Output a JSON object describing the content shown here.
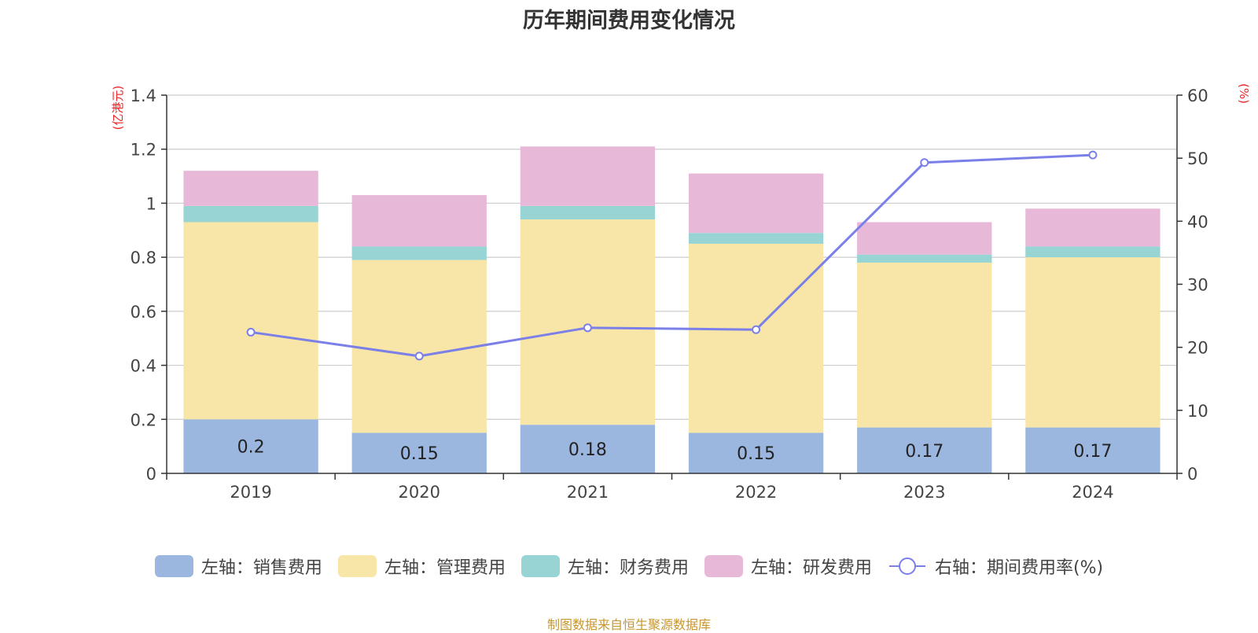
{
  "title": "历年期间费用变化情况",
  "source_note": "制图数据来自恒生聚源数据库",
  "colors": {
    "sales": "#9bb7e0",
    "admin": "#f7e6a8",
    "finance": "#98d4d4",
    "rd": "#e8b8d9",
    "rate": "#7b7fe8"
  },
  "chart_data": {
    "type": "bar",
    "stacked": true,
    "categories": [
      "2019",
      "2020",
      "2021",
      "2022",
      "2023",
      "2024"
    ],
    "y_left": {
      "unit": "(亿港元)",
      "lim": [
        0,
        1.4
      ],
      "ticks": [
        "0",
        "0.2",
        "0.4",
        "0.6",
        "0.8",
        "1",
        "1.2",
        "1.4"
      ]
    },
    "y_right": {
      "unit": "(%)",
      "lim": [
        0,
        60
      ],
      "ticks": [
        "0",
        "10",
        "20",
        "30",
        "40",
        "50",
        "60"
      ]
    },
    "series": [
      {
        "name": "左轴：销售费用",
        "key": "sales",
        "values": [
          0.2,
          0.15,
          0.18,
          0.15,
          0.17,
          0.17
        ],
        "labels": [
          "0.2",
          "0.15",
          "0.18",
          "0.15",
          "0.17",
          "0.17"
        ]
      },
      {
        "name": "左轴：管理费用",
        "key": "admin",
        "values": [
          0.73,
          0.64,
          0.76,
          0.7,
          0.61,
          0.63
        ]
      },
      {
        "name": "左轴：财务费用",
        "key": "finance",
        "values": [
          0.06,
          0.05,
          0.05,
          0.04,
          0.03,
          0.04
        ]
      },
      {
        "name": "左轴：研发费用",
        "key": "rd",
        "values": [
          0.13,
          0.19,
          0.22,
          0.22,
          0.12,
          0.14
        ]
      }
    ],
    "line": {
      "name": "右轴：期间费用率(%)",
      "key": "rate",
      "values": [
        22.4,
        18.6,
        23.1,
        22.8,
        49.3,
        50.5
      ]
    },
    "grid": true,
    "legend_position": "bottom"
  }
}
